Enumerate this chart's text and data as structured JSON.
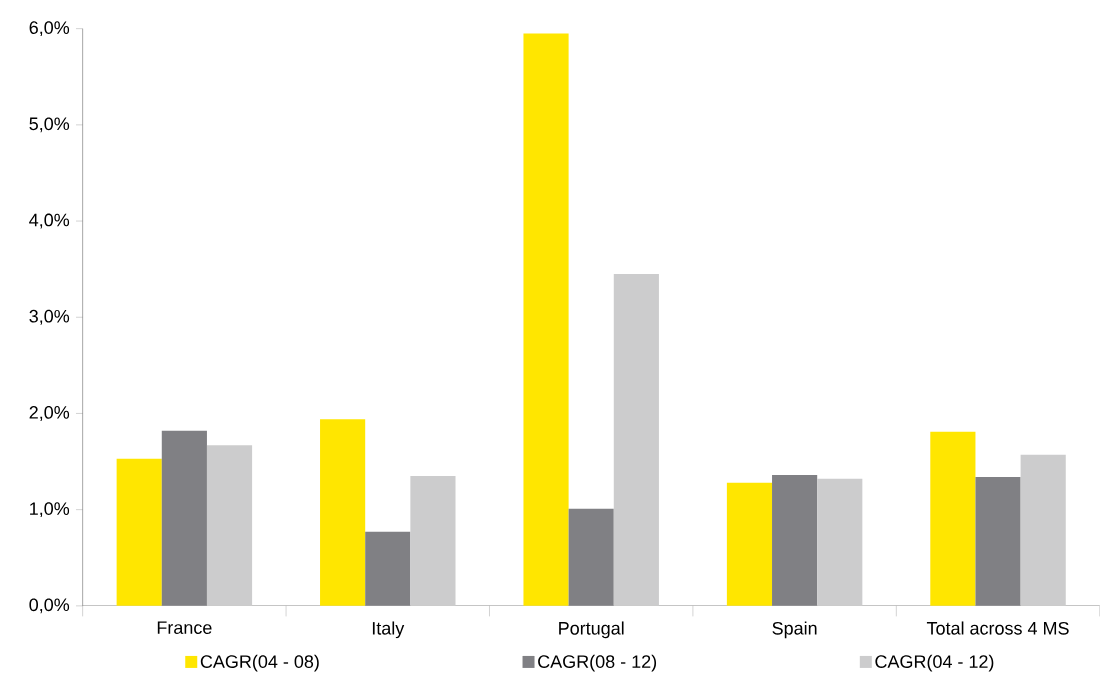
{
  "chart_data": {
    "type": "bar",
    "categories": [
      "France",
      "Italy",
      "Portugal",
      "Spain",
      "Total across 4 MS"
    ],
    "series": [
      {
        "name": "CAGR(04 - 08)",
        "color": "#ffe600",
        "values": [
          1.53,
          1.94,
          5.95,
          1.28,
          1.81
        ]
      },
      {
        "name": "CAGR(08 - 12)",
        "color": "#808084",
        "values": [
          1.82,
          0.77,
          1.01,
          1.36,
          1.34
        ]
      },
      {
        "name": "CAGR(04 - 12)",
        "color": "#cccccd",
        "values": [
          1.67,
          1.35,
          3.45,
          1.32,
          1.57
        ]
      }
    ],
    "ylim": [
      0,
      6
    ],
    "yticks": [
      {
        "value": 0,
        "label": "0,0%"
      },
      {
        "value": 1,
        "label": "1,0%"
      },
      {
        "value": 2,
        "label": "2,0%"
      },
      {
        "value": 3,
        "label": "3,0%"
      },
      {
        "value": 4,
        "label": "4,0%"
      },
      {
        "value": 5,
        "label": "5,0%"
      },
      {
        "value": 6,
        "label": "6,0%"
      }
    ],
    "grid": false,
    "legend": "bottom"
  }
}
